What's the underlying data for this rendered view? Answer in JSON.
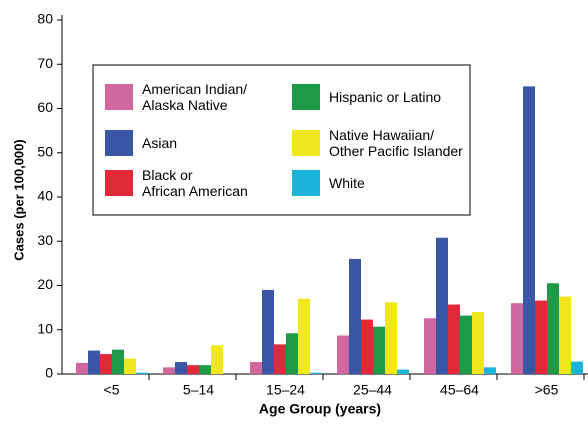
{
  "chart_data": {
    "type": "bar",
    "x_label": "Age Group (years)",
    "y_label": "Cases (per 100,000)",
    "categories": [
      "<5",
      "5–14",
      "15–24",
      "25–44",
      "45–64",
      ">65"
    ],
    "ylim": [
      0,
      80
    ],
    "yticks": [
      0,
      10,
      20,
      30,
      40,
      50,
      60,
      70,
      80
    ],
    "series": [
      {
        "name": "American Indian/\nAlaska Native",
        "color": "#d0679f",
        "values": [
          2.5,
          1.5,
          2.7,
          8.7,
          12.6,
          16
        ]
      },
      {
        "name": "Asian",
        "color": "#3858a6",
        "values": [
          5.3,
          2.7,
          19,
          26,
          30.8,
          65
        ]
      },
      {
        "name": "Black or\nAfrican American",
        "color": "#e02a3a",
        "values": [
          4.5,
          2,
          6.7,
          12.3,
          15.7,
          16.6
        ]
      },
      {
        "name": "Hispanic or Latino",
        "color": "#1c9a48",
        "values": [
          5.5,
          2,
          9.2,
          10.7,
          13.2,
          20.5
        ]
      },
      {
        "name": "Native Hawaiian/\nOther Pacific Islander",
        "color": "#f2e61c",
        "values": [
          3.5,
          6.5,
          17,
          16.2,
          14,
          17.5
        ]
      },
      {
        "name": "White",
        "color": "#1cb4d8",
        "values": [
          0.3,
          0,
          0.3,
          1,
          1.5,
          2.8
        ]
      }
    ]
  }
}
